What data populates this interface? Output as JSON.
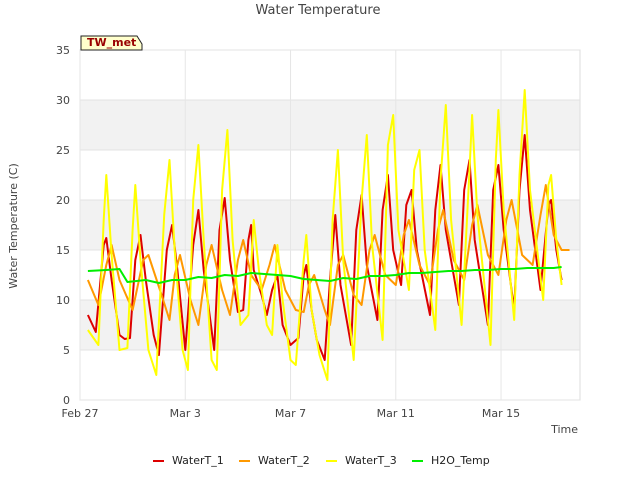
{
  "chart_data": {
    "type": "line",
    "title": "Water Temperature",
    "xlabel": "Time",
    "ylabel": "Water Temperature (C)",
    "badge": "TW_met",
    "xlim": [
      0,
      19
    ],
    "ylim": [
      0,
      35
    ],
    "x_ticks": [
      {
        "x": 0,
        "label": "Feb 27"
      },
      {
        "x": 4,
        "label": "Mar 3"
      },
      {
        "x": 8,
        "label": "Mar 7"
      },
      {
        "x": 12,
        "label": "Mar 11"
      },
      {
        "x": 16,
        "label": "Mar 15"
      }
    ],
    "y_ticks": [
      0,
      5,
      10,
      15,
      20,
      25,
      30,
      35
    ],
    "grid": "horizontal bands",
    "legend_position": "bottom",
    "x_unit": "days since Feb 27",
    "series": [
      {
        "name": "WaterT_1",
        "color": "#dd0000",
        "points": [
          [
            0.3,
            8.5
          ],
          [
            0.6,
            6.8
          ],
          [
            0.9,
            15.5
          ],
          [
            1.0,
            16.2
          ],
          [
            1.2,
            12.0
          ],
          [
            1.5,
            6.5
          ],
          [
            1.7,
            6.1
          ],
          [
            1.9,
            6.2
          ],
          [
            2.1,
            14.0
          ],
          [
            2.3,
            16.5
          ],
          [
            2.5,
            12.0
          ],
          [
            2.8,
            6.5
          ],
          [
            3.0,
            4.5
          ],
          [
            3.3,
            15.0
          ],
          [
            3.5,
            17.5
          ],
          [
            3.7,
            13.0
          ],
          [
            4.0,
            5.0
          ],
          [
            4.3,
            15.5
          ],
          [
            4.5,
            19.0
          ],
          [
            4.7,
            13.0
          ],
          [
            5.1,
            5.0
          ],
          [
            5.3,
            17.0
          ],
          [
            5.5,
            20.2
          ],
          [
            5.7,
            14.0
          ],
          [
            6.0,
            8.8
          ],
          [
            6.2,
            9.0
          ],
          [
            6.4,
            16.0
          ],
          [
            6.5,
            17.5
          ],
          [
            6.6,
            13.0
          ],
          [
            6.9,
            10.5
          ],
          [
            7.1,
            8.5
          ],
          [
            7.3,
            11.0
          ],
          [
            7.5,
            12.5
          ],
          [
            7.7,
            7.5
          ],
          [
            8.0,
            5.5
          ],
          [
            8.3,
            6.2
          ],
          [
            8.5,
            12.5
          ],
          [
            8.6,
            13.5
          ],
          [
            8.8,
            9.0
          ],
          [
            9.0,
            6.0
          ],
          [
            9.3,
            4.0
          ],
          [
            9.5,
            12.0
          ],
          [
            9.7,
            18.5
          ],
          [
            9.9,
            11.5
          ],
          [
            10.3,
            5.5
          ],
          [
            10.5,
            17.0
          ],
          [
            10.7,
            20.5
          ],
          [
            10.9,
            13.5
          ],
          [
            11.3,
            8.0
          ],
          [
            11.5,
            19.0
          ],
          [
            11.7,
            22.5
          ],
          [
            11.9,
            15.0
          ],
          [
            12.2,
            11.5
          ],
          [
            12.4,
            19.5
          ],
          [
            12.6,
            21.0
          ],
          [
            12.8,
            15.0
          ],
          [
            13.3,
            8.5
          ],
          [
            13.5,
            19.0
          ],
          [
            13.7,
            23.5
          ],
          [
            13.9,
            17.0
          ],
          [
            14.4,
            9.5
          ],
          [
            14.6,
            21.0
          ],
          [
            14.8,
            24.0
          ],
          [
            15.0,
            16.0
          ],
          [
            15.5,
            7.5
          ],
          [
            15.7,
            21.0
          ],
          [
            15.9,
            23.5
          ],
          [
            16.1,
            17.0
          ],
          [
            16.5,
            9.0
          ],
          [
            16.7,
            21.0
          ],
          [
            16.9,
            26.5
          ],
          [
            17.1,
            19.0
          ],
          [
            17.5,
            11.0
          ],
          [
            17.8,
            19.5
          ],
          [
            17.9,
            20.0
          ],
          [
            18.1,
            15.0
          ],
          [
            18.3,
            12.0
          ]
        ]
      },
      {
        "name": "WaterT_2",
        "color": "#ff9900",
        "points": [
          [
            0.3,
            12.0
          ],
          [
            0.7,
            9.5
          ],
          [
            1.0,
            13.5
          ],
          [
            1.2,
            15.5
          ],
          [
            1.5,
            12.0
          ],
          [
            2.0,
            9.0
          ],
          [
            2.4,
            14.0
          ],
          [
            2.6,
            14.5
          ],
          [
            3.1,
            10.5
          ],
          [
            3.4,
            8.0
          ],
          [
            3.6,
            12.5
          ],
          [
            3.8,
            14.5
          ],
          [
            4.2,
            10.0
          ],
          [
            4.5,
            7.5
          ],
          [
            4.8,
            13.5
          ],
          [
            5.0,
            15.5
          ],
          [
            5.4,
            11.0
          ],
          [
            5.7,
            8.5
          ],
          [
            6.0,
            14.0
          ],
          [
            6.2,
            16.0
          ],
          [
            6.5,
            12.5
          ],
          [
            6.9,
            11.0
          ],
          [
            7.2,
            13.5
          ],
          [
            7.4,
            15.5
          ],
          [
            7.8,
            11.0
          ],
          [
            8.2,
            9.0
          ],
          [
            8.5,
            8.8
          ],
          [
            8.7,
            11.5
          ],
          [
            8.9,
            12.5
          ],
          [
            9.3,
            9.0
          ],
          [
            9.5,
            7.5
          ],
          [
            9.8,
            13.5
          ],
          [
            10.0,
            14.5
          ],
          [
            10.4,
            10.5
          ],
          [
            10.7,
            9.5
          ],
          [
            11.0,
            15.0
          ],
          [
            11.2,
            16.5
          ],
          [
            11.6,
            12.5
          ],
          [
            12.0,
            11.5
          ],
          [
            12.3,
            16.5
          ],
          [
            12.5,
            18.0
          ],
          [
            12.9,
            13.5
          ],
          [
            13.3,
            11.5
          ],
          [
            13.6,
            17.0
          ],
          [
            13.8,
            19.0
          ],
          [
            14.2,
            14.0
          ],
          [
            14.6,
            12.0
          ],
          [
            14.9,
            17.5
          ],
          [
            15.1,
            19.5
          ],
          [
            15.5,
            14.5
          ],
          [
            15.9,
            12.5
          ],
          [
            16.2,
            18.0
          ],
          [
            16.4,
            20.0
          ],
          [
            16.8,
            14.5
          ],
          [
            17.2,
            13.5
          ],
          [
            17.5,
            18.5
          ],
          [
            17.7,
            21.5
          ],
          [
            18.0,
            16.5
          ],
          [
            18.3,
            15.0
          ],
          [
            18.6,
            15.0
          ]
        ]
      },
      {
        "name": "WaterT_3",
        "color": "#ffff00",
        "points": [
          [
            0.3,
            7.0
          ],
          [
            0.7,
            5.5
          ],
          [
            0.9,
            18.0
          ],
          [
            1.0,
            22.5
          ],
          [
            1.2,
            14.5
          ],
          [
            1.5,
            5.0
          ],
          [
            1.8,
            5.2
          ],
          [
            2.0,
            17.0
          ],
          [
            2.1,
            21.5
          ],
          [
            2.3,
            14.0
          ],
          [
            2.6,
            5.0
          ],
          [
            2.9,
            2.5
          ],
          [
            3.2,
            18.5
          ],
          [
            3.4,
            24.0
          ],
          [
            3.6,
            15.0
          ],
          [
            3.9,
            5.0
          ],
          [
            4.1,
            3.0
          ],
          [
            4.3,
            20.0
          ],
          [
            4.5,
            25.5
          ],
          [
            4.7,
            16.0
          ],
          [
            5.0,
            4.0
          ],
          [
            5.2,
            3.0
          ],
          [
            5.4,
            21.0
          ],
          [
            5.6,
            27.0
          ],
          [
            5.8,
            16.0
          ],
          [
            6.1,
            7.5
          ],
          [
            6.4,
            8.5
          ],
          [
            6.6,
            18.0
          ],
          [
            6.8,
            13.0
          ],
          [
            7.1,
            7.5
          ],
          [
            7.3,
            6.5
          ],
          [
            7.5,
            15.5
          ],
          [
            7.7,
            10.0
          ],
          [
            8.0,
            4.0
          ],
          [
            8.2,
            3.5
          ],
          [
            8.5,
            14.0
          ],
          [
            8.6,
            16.5
          ],
          [
            8.8,
            9.0
          ],
          [
            9.1,
            4.5
          ],
          [
            9.4,
            2.0
          ],
          [
            9.6,
            18.0
          ],
          [
            9.8,
            25.0
          ],
          [
            10.0,
            14.0
          ],
          [
            10.4,
            4.0
          ],
          [
            10.7,
            20.0
          ],
          [
            10.9,
            26.5
          ],
          [
            11.1,
            15.5
          ],
          [
            11.5,
            6.0
          ],
          [
            11.7,
            25.5
          ],
          [
            11.9,
            28.5
          ],
          [
            12.1,
            17.0
          ],
          [
            12.5,
            11.0
          ],
          [
            12.7,
            23.0
          ],
          [
            12.9,
            25.0
          ],
          [
            13.1,
            15.0
          ],
          [
            13.5,
            7.0
          ],
          [
            13.7,
            22.0
          ],
          [
            13.9,
            29.5
          ],
          [
            14.1,
            18.0
          ],
          [
            14.5,
            7.5
          ],
          [
            14.8,
            23.0
          ],
          [
            14.9,
            28.5
          ],
          [
            15.1,
            18.5
          ],
          [
            15.6,
            5.5
          ],
          [
            15.8,
            24.0
          ],
          [
            15.9,
            29.0
          ],
          [
            16.1,
            19.0
          ],
          [
            16.5,
            8.0
          ],
          [
            16.7,
            22.5
          ],
          [
            16.9,
            31.0
          ],
          [
            17.1,
            21.0
          ],
          [
            17.6,
            10.0
          ],
          [
            17.8,
            21.5
          ],
          [
            17.9,
            22.5
          ],
          [
            18.1,
            16.0
          ],
          [
            18.3,
            11.5
          ]
        ]
      },
      {
        "name": "H2O_Temp",
        "color": "#00ee00",
        "points": [
          [
            0.3,
            12.9
          ],
          [
            1.0,
            13.0
          ],
          [
            1.5,
            13.1
          ],
          [
            1.8,
            11.8
          ],
          [
            2.5,
            12.0
          ],
          [
            3.0,
            11.7
          ],
          [
            3.5,
            12.0
          ],
          [
            4.0,
            12.0
          ],
          [
            4.5,
            12.3
          ],
          [
            5.0,
            12.2
          ],
          [
            5.5,
            12.5
          ],
          [
            6.0,
            12.4
          ],
          [
            6.5,
            12.7
          ],
          [
            7.0,
            12.6
          ],
          [
            7.5,
            12.5
          ],
          [
            8.0,
            12.4
          ],
          [
            8.5,
            12.1
          ],
          [
            9.0,
            12.0
          ],
          [
            9.5,
            11.9
          ],
          [
            10.0,
            12.2
          ],
          [
            10.5,
            12.1
          ],
          [
            11.0,
            12.4
          ],
          [
            11.5,
            12.4
          ],
          [
            12.0,
            12.5
          ],
          [
            12.5,
            12.7
          ],
          [
            13.0,
            12.7
          ],
          [
            13.5,
            12.8
          ],
          [
            14.0,
            12.9
          ],
          [
            14.5,
            12.9
          ],
          [
            15.0,
            13.0
          ],
          [
            15.5,
            13.0
          ],
          [
            16.0,
            13.1
          ],
          [
            16.5,
            13.1
          ],
          [
            17.0,
            13.2
          ],
          [
            17.5,
            13.2
          ],
          [
            18.0,
            13.2
          ],
          [
            18.3,
            13.3
          ]
        ]
      }
    ]
  }
}
